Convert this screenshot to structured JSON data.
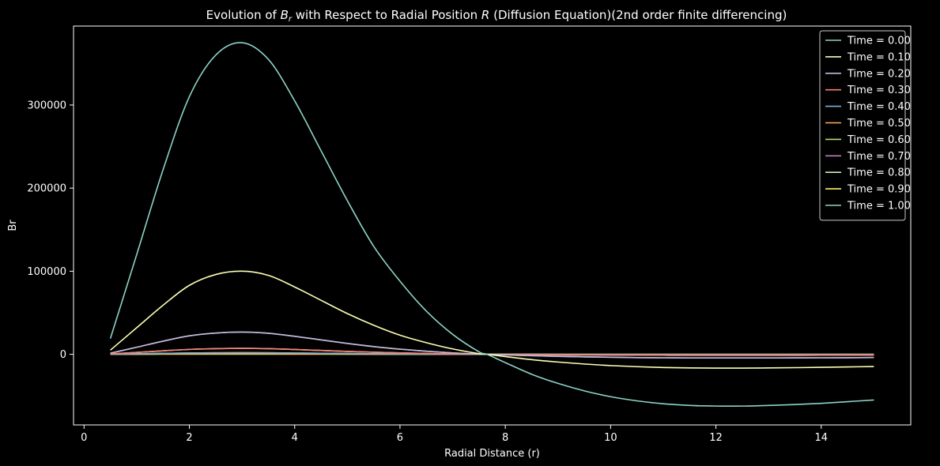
{
  "chart_data": {
    "type": "line",
    "title_prefix": "Evolution of ",
    "title_var": "B",
    "title_var_sub": "r",
    "title_middle": " with Respect to Radial Position ",
    "title_pos_var": "R",
    "title_suffix": " (Diffusion Equation)(2nd order finite differencing)",
    "xlabel": "Radial Distance (r)",
    "ylabel": "Br",
    "xlim": [
      -0.2,
      15.7
    ],
    "ylim": [
      -85000,
      395000
    ],
    "x_ticks": [
      0,
      2,
      4,
      6,
      8,
      10,
      12,
      14
    ],
    "x_tick_labels": [
      "0",
      "2",
      "4",
      "6",
      "8",
      "10",
      "12",
      "14"
    ],
    "y_ticks": [
      0,
      100000,
      200000,
      300000
    ],
    "y_tick_labels": [
      "0",
      "100000",
      "200000",
      "300000"
    ],
    "grid": false,
    "legend_position": "top-right",
    "x": [
      0.5,
      1.0,
      1.5,
      2.0,
      2.5,
      3.0,
      3.5,
      4.0,
      4.5,
      5.0,
      5.5,
      6.0,
      6.5,
      7.0,
      7.5,
      7.65,
      8.0,
      8.5,
      9.0,
      9.5,
      10.0,
      10.5,
      11.0,
      11.5,
      12.0,
      12.5,
      13.0,
      13.5,
      14.0,
      14.5,
      15.0
    ],
    "series": [
      {
        "name": "Time = 0.00",
        "color": "#8dd3c7",
        "values": [
          19000,
          120000,
          222000,
          310000,
          360000,
          375000,
          355000,
          305000,
          245000,
          185000,
          130000,
          88000,
          52000,
          24000,
          3000,
          0,
          -10000,
          -24000,
          -35000,
          -44000,
          -51000,
          -56000,
          -59500,
          -61500,
          -62300,
          -62300,
          -61500,
          -60500,
          -59000,
          -57000,
          -55000
        ]
      },
      {
        "name": "Time = 0.10",
        "color": "#feffb3",
        "values": [
          5000,
          32000,
          59000,
          83000,
          96000,
          100000,
          95000,
          81000,
          65000,
          49000,
          35000,
          23000,
          14000,
          6500,
          800,
          0,
          -2700,
          -6400,
          -9300,
          -11700,
          -13600,
          -14900,
          -15900,
          -16400,
          -16600,
          -16600,
          -16400,
          -16100,
          -15700,
          -15200,
          -14700
        ]
      },
      {
        "name": "Time = 0.20",
        "color": "#bfbbd9",
        "values": [
          1300,
          8500,
          15800,
          22200,
          25600,
          26700,
          25300,
          21600,
          17400,
          13100,
          9300,
          6200,
          3700,
          1700,
          200,
          0,
          -700,
          -1700,
          -2500,
          -3100,
          -3600,
          -4000,
          -4200,
          -4400,
          -4400,
          -4400,
          -4400,
          -4300,
          -4200,
          -4100,
          -3900
        ]
      },
      {
        "name": "Time = 0.30",
        "color": "#fa8174",
        "values": [
          350,
          2300,
          4200,
          5900,
          6800,
          7100,
          6800,
          5800,
          4600,
          3500,
          2500,
          1700,
          1000,
          460,
          60,
          0,
          -190,
          -460,
          -670,
          -840,
          -970,
          -1070,
          -1130,
          -1170,
          -1190,
          -1190,
          -1170,
          -1150,
          -1120,
          -1090,
          -1050
        ]
      },
      {
        "name": "Time = 0.40",
        "color": "#81b1d2",
        "values": [
          90,
          600,
          1100,
          1600,
          1800,
          1900,
          1800,
          1500,
          1200,
          930,
          660,
          440,
          270,
          120,
          15,
          0,
          -50,
          -120,
          -180,
          -220,
          -260,
          -290,
          -300,
          -310,
          -320,
          -320,
          -310,
          -310,
          -300,
          -290,
          -280
        ]
      },
      {
        "name": "Time = 0.50",
        "color": "#fdb462",
        "values": [
          25,
          160,
          300,
          420,
          480,
          500,
          480,
          410,
          330,
          250,
          180,
          120,
          70,
          33,
          4,
          0,
          -13,
          -33,
          -48,
          -60,
          -69,
          -76,
          -80,
          -83,
          -84,
          -84,
          -83,
          -81,
          -79,
          -77,
          -75
        ]
      },
      {
        "name": "Time = 0.60",
        "color": "#b3de69",
        "values": [
          7,
          43,
          80,
          110,
          130,
          135,
          130,
          110,
          88,
          66,
          47,
          31,
          19,
          9,
          1,
          0,
          -4,
          -9,
          -13,
          -16,
          -18,
          -20,
          -21,
          -22,
          -22,
          -22,
          -22,
          -22,
          -21,
          -21,
          -20
        ]
      },
      {
        "name": "Time = 0.70",
        "color": "#bc82bd",
        "values": [
          1300,
          8500,
          15800,
          22200,
          25600,
          26700,
          25300,
          21600,
          17400,
          13100,
          9300,
          6200,
          3700,
          1700,
          200,
          0,
          -700,
          -1700,
          -2500,
          -3100,
          -3600,
          -4000,
          -4200,
          -4400,
          -4400,
          -4400,
          -4400,
          -4300,
          -4200,
          -4100,
          -3900
        ]
      },
      {
        "name": "Time = 0.80",
        "color": "#ccebc4",
        "values": [
          350,
          2300,
          4200,
          5900,
          6800,
          7100,
          6800,
          5800,
          4600,
          3500,
          2500,
          1700,
          1000,
          460,
          60,
          0,
          -190,
          -460,
          -670,
          -840,
          -970,
          -1070,
          -1130,
          -1170,
          -1190,
          -1190,
          -1170,
          -1150,
          -1120,
          -1090,
          -1050
        ]
      },
      {
        "name": "Time = 0.90",
        "color": "#ffed6f",
        "values": [
          90,
          600,
          1100,
          1600,
          1800,
          1900,
          1800,
          1500,
          1200,
          930,
          660,
          440,
          270,
          120,
          15,
          0,
          -50,
          -120,
          -180,
          -220,
          -260,
          -290,
          -300,
          -310,
          -320,
          -320,
          -310,
          -310,
          -300,
          -290,
          -280
        ]
      },
      {
        "name": "Time = 1.00",
        "color": "#8dd3c7",
        "values": [
          25,
          160,
          300,
          420,
          480,
          500,
          480,
          410,
          330,
          250,
          180,
          120,
          70,
          33,
          4,
          0,
          -13,
          -33,
          -48,
          -60,
          -69,
          -76,
          -80,
          -83,
          -84,
          -84,
          -83,
          -81,
          -79,
          -77,
          -75
        ]
      }
    ]
  }
}
